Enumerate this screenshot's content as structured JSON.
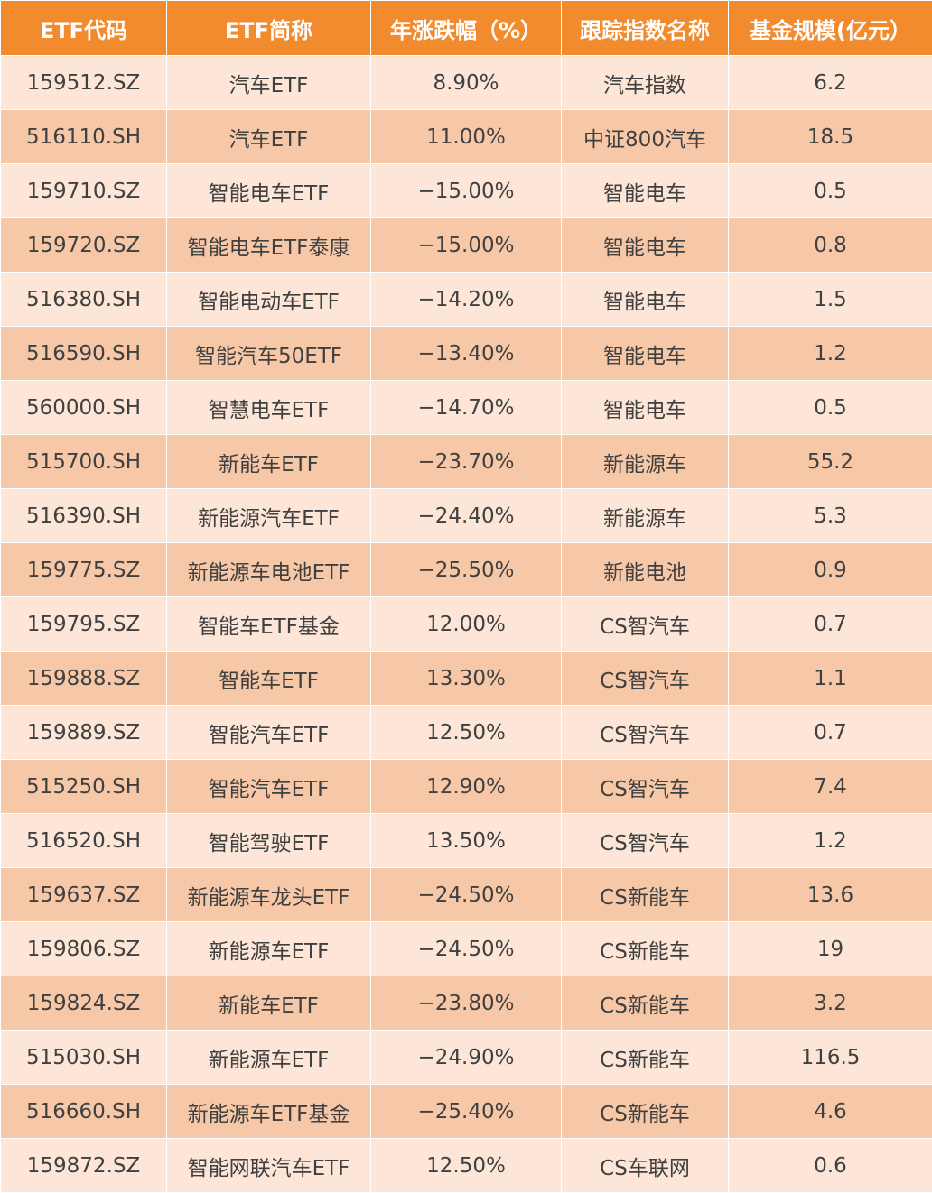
{
  "table": {
    "headers": [
      "ETF代码",
      "ETF简称",
      "年涨跌幅（%）",
      "跟踪指数名称",
      "基金规模(亿元）"
    ],
    "rows": [
      [
        "159512.SZ",
        "汽车ETF",
        "8.90%",
        "汽车指数",
        "6.2"
      ],
      [
        "516110.SH",
        "汽车ETF",
        "11.00%",
        "中证800汽车",
        "18.5"
      ],
      [
        "159710.SZ",
        "智能电车ETF",
        "−15.00%",
        "智能电车",
        "0.5"
      ],
      [
        "159720.SZ",
        "智能电车ETF泰康",
        "−15.00%",
        "智能电车",
        "0.8"
      ],
      [
        "516380.SH",
        "智能电动车ETF",
        "−14.20%",
        "智能电车",
        "1.5"
      ],
      [
        "516590.SH",
        "智能汽车50ETF",
        "−13.40%",
        "智能电车",
        "1.2"
      ],
      [
        "560000.SH",
        "智慧电车ETF",
        "−14.70%",
        "智能电车",
        "0.5"
      ],
      [
        "515700.SH",
        "新能车ETF",
        "−23.70%",
        "新能源车",
        "55.2"
      ],
      [
        "516390.SH",
        "新能源汽车ETF",
        "−24.40%",
        "新能源车",
        "5.3"
      ],
      [
        "159775.SZ",
        "新能源车电池ETF",
        "−25.50%",
        "新能电池",
        "0.9"
      ],
      [
        "159795.SZ",
        "智能车ETF基金",
        "12.00%",
        "CS智汽车",
        "0.7"
      ],
      [
        "159888.SZ",
        "智能车ETF",
        "13.30%",
        "CS智汽车",
        "1.1"
      ],
      [
        "159889.SZ",
        "智能汽车ETF",
        "12.50%",
        "CS智汽车",
        "0.7"
      ],
      [
        "515250.SH",
        "智能汽车ETF",
        "12.90%",
        "CS智汽车",
        "7.4"
      ],
      [
        "516520.SH",
        "智能驾驶ETF",
        "13.50%",
        "CS智汽车",
        "1.2"
      ],
      [
        "159637.SZ",
        "新能源车龙头ETF",
        "−24.50%",
        "CS新能车",
        "13.6"
      ],
      [
        "159806.SZ",
        "新能源车ETF",
        "−24.50%",
        "CS新能车",
        "19"
      ],
      [
        "159824.SZ",
        "新能车ETF",
        "−23.80%",
        "CS新能车",
        "3.2"
      ],
      [
        "515030.SH",
        "新能源车ETF",
        "−24.90%",
        "CS新能车",
        "116.5"
      ],
      [
        "516660.SH",
        "新能源车ETF基金",
        "−25.40%",
        "CS新能车",
        "4.6"
      ],
      [
        "159872.SZ",
        "智能网联汽车ETF",
        "12.50%",
        "CS车联网",
        "0.6"
      ]
    ]
  },
  "colors": {
    "header_bg": "#f28b2d",
    "header_text": "#ffffff",
    "row_light": "#fde6d8",
    "row_dark": "#f7c8a8",
    "cell_text": "#404040"
  }
}
